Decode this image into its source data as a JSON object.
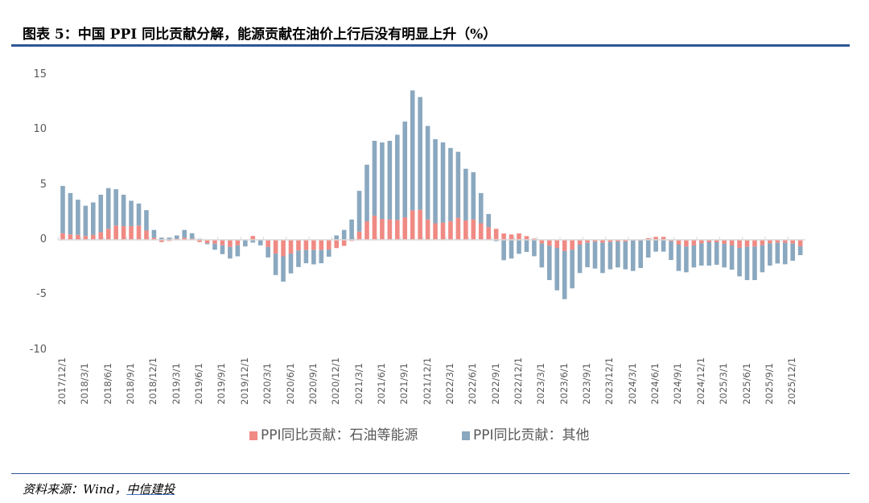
{
  "title": "图表 5：中国 PPI 同比贡献分解，能源贡献在油价上行后没有明显上升（%）",
  "source": {
    "prefix": "资料来源：Wind，",
    "brand": "中信建投"
  },
  "chart_data": {
    "type": "bar",
    "stacked": true,
    "title": "",
    "xlabel": "",
    "ylabel": "",
    "ylim": [
      -10,
      15
    ],
    "y_ticks": [
      "15",
      "10",
      "5",
      "0",
      "-5",
      "-10"
    ],
    "y_tick_values": [
      15,
      10,
      5,
      0,
      -5,
      -10
    ],
    "grid": false,
    "legend_position": "bottom",
    "x_tick_labels": [
      "2017/12/1",
      "2018/3/1",
      "2018/6/1",
      "2018/9/1",
      "2018/12/1",
      "2019/3/1",
      "2019/6/1",
      "2019/9/1",
      "2019/12/1",
      "2020/3/1",
      "2020/6/1",
      "2020/9/1",
      "2020/12/1",
      "2021/3/1",
      "2021/6/1",
      "2021/9/1",
      "2021/12/1",
      "2022/3/1",
      "2022/6/1",
      "2022/9/1",
      "2022/12/1",
      "2023/3/1",
      "2023/6/1",
      "2023/9/1",
      "2023/12/1",
      "2024/3/1",
      "2024/6/1",
      "2024/9/1",
      "2024/12/1",
      "2025/3/1",
      "2025/6/1",
      "2025/9/1",
      "2025/12/1"
    ],
    "categories": [
      "2017/12",
      "2018/1",
      "2018/2",
      "2018/3",
      "2018/4",
      "2018/5",
      "2018/6",
      "2018/7",
      "2018/8",
      "2018/9",
      "2018/10",
      "2018/11",
      "2018/12",
      "2019/1",
      "2019/2",
      "2019/3",
      "2019/4",
      "2019/5",
      "2019/6",
      "2019/7",
      "2019/8",
      "2019/9",
      "2019/10",
      "2019/11",
      "2019/12",
      "2020/1",
      "2020/2",
      "2020/3",
      "2020/4",
      "2020/5",
      "2020/6",
      "2020/7",
      "2020/8",
      "2020/9",
      "2020/10",
      "2020/11",
      "2020/12",
      "2021/1",
      "2021/2",
      "2021/3",
      "2021/4",
      "2021/5",
      "2021/6",
      "2021/7",
      "2021/8",
      "2021/9",
      "2021/10",
      "2021/11",
      "2021/12",
      "2022/1",
      "2022/2",
      "2022/3",
      "2022/4",
      "2022/5",
      "2022/6",
      "2022/7",
      "2022/8",
      "2022/9",
      "2022/10",
      "2022/11",
      "2022/12",
      "2023/1",
      "2023/2",
      "2023/3",
      "2023/4",
      "2023/5",
      "2023/6",
      "2023/7",
      "2023/8",
      "2023/9",
      "2023/10",
      "2023/11",
      "2023/12",
      "2024/1",
      "2024/2",
      "2024/3",
      "2024/4",
      "2024/5",
      "2024/6",
      "2024/7",
      "2024/8",
      "2024/9",
      "2024/10",
      "2024/11",
      "2024/12",
      "2025/1",
      "2025/2",
      "2025/3",
      "2025/4",
      "2025/5",
      "2025/6",
      "2025/7",
      "2025/8",
      "2025/9",
      "2025/10",
      "2025/11",
      "2025/12",
      "2026/1"
    ],
    "series": [
      {
        "name": "PPI同比贡献：石油等能源",
        "color": "#f08a84",
        "values": [
          0.6,
          0.5,
          0.45,
          0.35,
          0.45,
          0.7,
          1.0,
          1.3,
          1.25,
          1.25,
          1.3,
          0.85,
          0.2,
          -0.2,
          -0.1,
          0.1,
          0.2,
          0.1,
          -0.2,
          -0.3,
          -0.35,
          -0.5,
          -0.65,
          -0.5,
          0,
          0.35,
          0,
          -0.65,
          -1.25,
          -1.5,
          -1.25,
          -0.97,
          -0.93,
          -0.93,
          -0.93,
          -0.88,
          -0.75,
          -0.55,
          -0.1,
          0.75,
          1.68,
          2.2,
          1.9,
          1.85,
          1.8,
          2.05,
          2.68,
          2.73,
          1.85,
          1.5,
          1.56,
          1.7,
          2.0,
          1.76,
          1.85,
          1.5,
          1.15,
          1.0,
          0.58,
          0.49,
          0.58,
          0.34,
          0.12,
          -0.34,
          -0.54,
          -0.73,
          -1.02,
          -0.9,
          -0.44,
          -0.27,
          -0.17,
          -0.27,
          -0.2,
          -0.15,
          -0.15,
          -0.07,
          -0.07,
          0.15,
          0.27,
          0.27,
          -0.12,
          -0.44,
          -0.61,
          -0.51,
          -0.32,
          -0.22,
          -0.22,
          -0.37,
          -0.51,
          -0.73,
          -0.63,
          -0.61,
          -0.49,
          -0.32,
          -0.27,
          -0.27,
          -0.34,
          -0.59
        ]
      },
      {
        "name": "PPI同比贡献：其他",
        "color": "#8aa8bf",
        "values": [
          4.3,
          3.75,
          3.2,
          2.75,
          2.95,
          3.4,
          3.7,
          3.3,
          2.85,
          2.3,
          2.0,
          1.85,
          0.7,
          0.2,
          0.2,
          0.3,
          0.7,
          0.5,
          0.1,
          -0.1,
          -0.55,
          -0.8,
          -1.05,
          -1.0,
          -0.6,
          -0.25,
          -0.5,
          -0.95,
          -1.95,
          -2.3,
          -1.8,
          -1.5,
          -1.2,
          -1.3,
          -1.2,
          -0.65,
          0.4,
          0.9,
          1.85,
          3.7,
          5.15,
          6.8,
          6.95,
          7.15,
          7.75,
          8.7,
          10.9,
          10.25,
          8.5,
          7.65,
          7.3,
          6.65,
          6.0,
          4.7,
          4.3,
          2.75,
          1.2,
          -0.12,
          -1.85,
          -1.7,
          -1.27,
          -1.1,
          -1.49,
          -2.17,
          -3.12,
          -3.86,
          -4.37,
          -3.51,
          -2.58,
          -2.22,
          -2.44,
          -2.75,
          -2.48,
          -2.36,
          -2.53,
          -2.76,
          -2.49,
          -1.61,
          -1.07,
          -1.07,
          -1.71,
          -2.39,
          -2.34,
          -2.0,
          -2.02,
          -2.12,
          -2.05,
          -2.14,
          -2.2,
          -2.59,
          -3.03,
          -3.05,
          -2.46,
          -2.02,
          -1.88,
          -1.95,
          -1.56,
          -0.8
        ]
      }
    ]
  }
}
